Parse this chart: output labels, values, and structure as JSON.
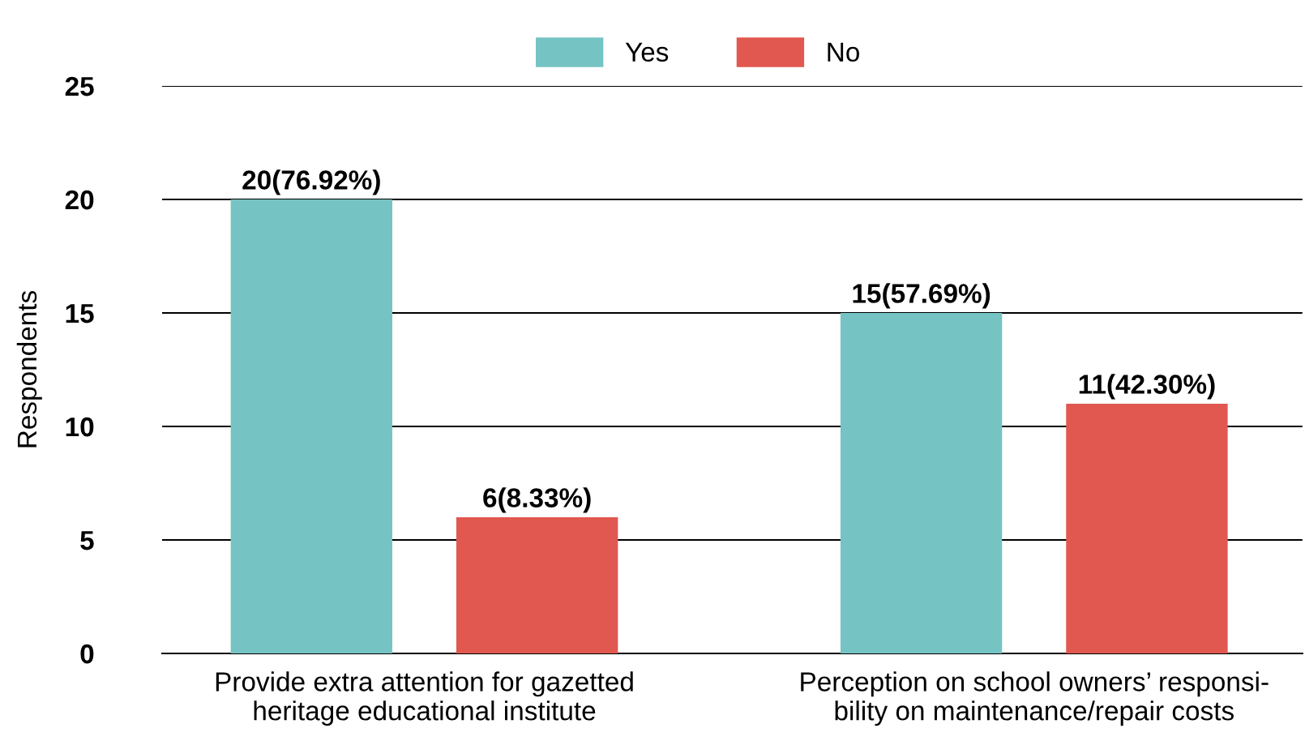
{
  "chart_data": {
    "type": "bar",
    "ylabel": "Respondents",
    "categories": [
      "Provide extra attention for gazetted\nheritage educational institute",
      "Perception on school owners’ responsi-\nbility on maintenance/repair costs"
    ],
    "series": [
      {
        "name": "Yes",
        "color": "#76c3c3",
        "values": [
          20,
          15
        ],
        "value_labels": [
          "20(76.92%)",
          "15(57.69%)"
        ]
      },
      {
        "name": "No",
        "color": "#e0584f",
        "values": [
          6,
          11
        ],
        "value_labels": [
          "6(8.33%)",
          "11(42.30%)"
        ]
      }
    ],
    "ylim": [
      0,
      25
    ],
    "yticks": [
      0,
      5,
      10,
      15,
      20,
      25
    ],
    "grid": "y",
    "legend": "top"
  }
}
